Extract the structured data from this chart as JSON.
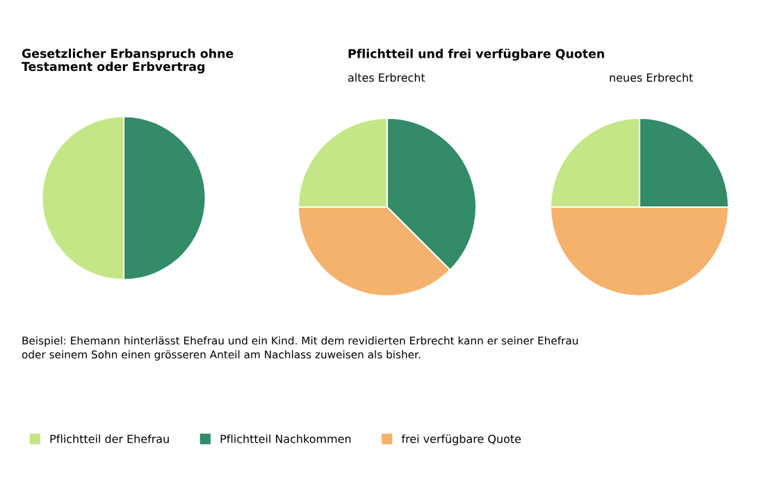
{
  "chart_data": [
    {
      "type": "pie",
      "title": "Gesetzlicher Erbanspruch ohne\nTestament oder Erbvertrag",
      "categories": [
        "Pflichtteil der Ehefrau",
        "Pflichtteil Nachkommen",
        "frei verfügbare Quote"
      ],
      "values": [
        50,
        50,
        null
      ],
      "colors": [
        "#c5e686",
        "#338b68",
        "#f5b26d"
      ],
      "legend": "bottom",
      "annotations": [
        "Beispiel: Ehemann hinterlässt Ehefrau und ein Kind. Mit dem revidierten Erbrecht kann er seiner Ehefrau\noder seinem Sohn einen grösseren Anteil am Nachlass zuweisen als bisher."
      ]
    },
    {
      "type": "pie",
      "title": "Pflichtteil und frei verfügbare Quoten",
      "subtitle": "altes Erbrecht",
      "values": [
        25,
        37.5,
        37.5
      ],
      "colors": [
        "#c5e686",
        "#338b68",
        "#f5b26d"
      ]
    },
    {
      "type": "pie",
      "subtitle": "neues Erbrecht",
      "values": [
        25,
        25,
        50
      ],
      "colors": [
        "#c5e686",
        "#338b68",
        "#f5b26d"
      ]
    }
  ]
}
